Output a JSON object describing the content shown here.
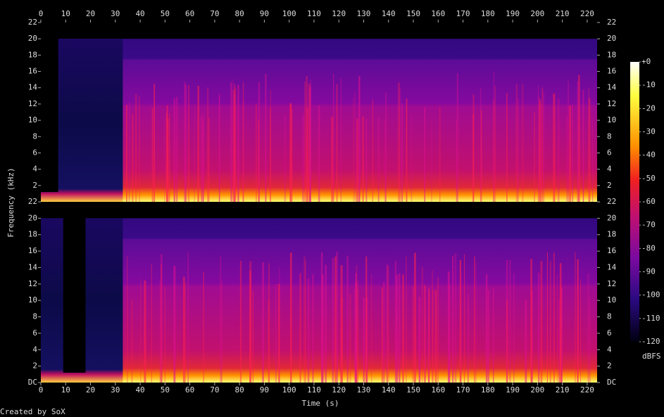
{
  "chart_data": {
    "type": "spectrogram",
    "xlabel": "Time (s)",
    "ylabel": "Frequency (kHz)",
    "xlim": [
      0,
      224
    ],
    "xticks": [
      0,
      10,
      20,
      30,
      40,
      50,
      60,
      70,
      80,
      90,
      100,
      110,
      120,
      130,
      140,
      150,
      160,
      170,
      180,
      190,
      200,
      210,
      220
    ],
    "ylim": [
      0,
      22
    ],
    "channels": [
      {
        "yticks": [
          2,
          4,
          6,
          8,
          10,
          12,
          14,
          16,
          18,
          20,
          22
        ]
      },
      {
        "yticks": [
          {
            "value": 0,
            "label": "DC"
          },
          2,
          4,
          6,
          8,
          10,
          12,
          14,
          16,
          18,
          20,
          22
        ]
      }
    ],
    "colorbar": {
      "label": "dBFS",
      "zlim": [
        -120,
        0
      ],
      "ticks": [
        {
          "value": 0,
          "label": "+0"
        },
        -10,
        -20,
        -30,
        -40,
        -50,
        -60,
        -70,
        -80,
        -90,
        -100,
        -110,
        -120
      ]
    }
  },
  "footer": "Created by SoX"
}
